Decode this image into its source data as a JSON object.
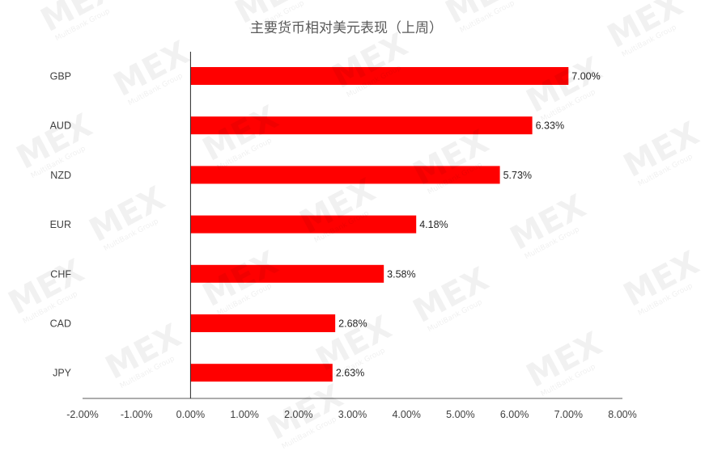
{
  "chart_data": {
    "type": "bar",
    "orientation": "horizontal",
    "title": "主要货币相对美元表现（上周）",
    "categories": [
      "GBP",
      "AUD",
      "NZD",
      "EUR",
      "CHF",
      "CAD",
      "JPY"
    ],
    "values": [
      7.0,
      6.33,
      5.73,
      4.18,
      3.58,
      2.68,
      2.63
    ],
    "data_labels": [
      "7.00%",
      "6.33%",
      "5.73%",
      "4.18%",
      "3.58%",
      "2.68%",
      "2.63%"
    ],
    "xlim": [
      -2,
      8
    ],
    "xticks": [
      -2,
      -1,
      0,
      1,
      2,
      3,
      4,
      5,
      6,
      7,
      8
    ],
    "xtick_labels": [
      "-2.00%",
      "-1.00%",
      "0.00%",
      "1.00%",
      "2.00%",
      "3.00%",
      "4.00%",
      "5.00%",
      "6.00%",
      "7.00%",
      "8.00%"
    ],
    "xlabel": "",
    "ylabel": "",
    "grid": false,
    "legend": "none",
    "bar_color": "#ff0000"
  },
  "watermark": {
    "logo_text": "MEX",
    "sub_text": "MultiBank Group"
  }
}
